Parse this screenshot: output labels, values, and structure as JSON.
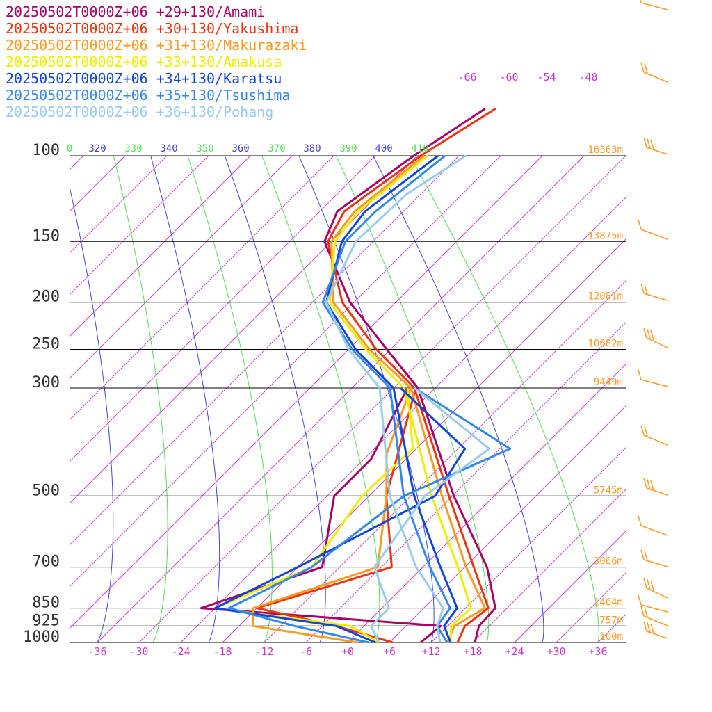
{
  "chart_data": {
    "type": "line",
    "chart_kind": "skew-T log-P",
    "x_axis": {
      "ticks": [
        -36,
        -30,
        -24,
        -18,
        -12,
        -6,
        0,
        6,
        12,
        18,
        24,
        30,
        36
      ],
      "tick_labels": [
        "-36",
        "-30",
        "-24",
        "-18",
        "-12",
        "-6",
        "+0",
        "+6",
        "+12",
        "+18",
        "+24",
        "+30",
        "+36"
      ]
    },
    "y_axis": {
      "scale": "log",
      "range": [
        1000,
        100
      ],
      "levels": [
        {
          "p": 100,
          "label": "100",
          "height": "16363m"
        },
        {
          "p": 150,
          "label": "150",
          "height": "13875m"
        },
        {
          "p": 200,
          "label": "200",
          "height": "12081m"
        },
        {
          "p": 250,
          "label": "250",
          "height": "10682m"
        },
        {
          "p": 300,
          "label": "300",
          "height": "9449m"
        },
        {
          "p": 500,
          "label": "500",
          "height": "5745m"
        },
        {
          "p": 700,
          "label": "700",
          "height": "3066m"
        },
        {
          "p": 850,
          "label": "850",
          "height": "1464m"
        },
        {
          "p": 925,
          "label": "925",
          "height": "757m"
        },
        {
          "p": 1000,
          "label": "1000",
          "height": "100m"
        }
      ]
    },
    "isotherm_labels": [
      "-66",
      "-60",
      "-54",
      "-48"
    ],
    "theta_e_labels": [
      {
        "text": "0",
        "color": "#55dd55"
      },
      {
        "text": "320",
        "color": "#4444dd"
      },
      {
        "text": "330",
        "color": "#55dd55"
      },
      {
        "text": "340",
        "color": "#4444dd"
      },
      {
        "text": "350",
        "color": "#55dd55"
      },
      {
        "text": "360",
        "color": "#4444dd"
      },
      {
        "text": "370",
        "color": "#55dd55"
      },
      {
        "text": "380",
        "color": "#4444dd"
      },
      {
        "text": "390",
        "color": "#55dd55"
      },
      {
        "text": "400",
        "color": "#4444dd"
      },
      {
        "text": "410",
        "color": "#55dd55"
      }
    ],
    "series": [
      {
        "name": "20250502T0000Z+06 +29+130/Amami",
        "color": "#aa0066",
        "temperature": [
          [
            1000,
            18.3
          ],
          [
            925,
            16.5
          ],
          [
            850,
            16.3
          ],
          [
            700,
            9.2
          ],
          [
            500,
            -5.8
          ],
          [
            300,
            -26.5
          ],
          [
            250,
            -36.5
          ],
          [
            200,
            -48.6
          ],
          [
            150,
            -61
          ],
          [
            130,
            -63.5
          ],
          [
            100,
            -60.5
          ],
          [
            80,
            -57
          ]
        ],
        "dewpoint": [
          [
            1000,
            10.5
          ],
          [
            925,
            11.0
          ],
          [
            850,
            -26.0
          ],
          [
            700,
            -14.5
          ],
          [
            500,
            -23.0
          ],
          [
            420,
            -23.0
          ],
          [
            300,
            -28.0
          ]
        ]
      },
      {
        "name": "20250502T0000Z+06 +30+130/Yakushima",
        "color": "#ee3311",
        "temperature": [
          [
            1000,
            15.8
          ],
          [
            925,
            14.5
          ],
          [
            850,
            15.3
          ],
          [
            700,
            7.3
          ],
          [
            500,
            -6.5
          ],
          [
            300,
            -27.0
          ],
          [
            250,
            -38.0
          ],
          [
            200,
            -49.7
          ],
          [
            150,
            -60.5
          ],
          [
            130,
            -62.5
          ],
          [
            100,
            -59.5
          ],
          [
            80,
            -55.5
          ]
        ],
        "dewpoint": [
          [
            1000,
            6.5
          ],
          [
            925,
            -4.0
          ],
          [
            850,
            -18.0
          ],
          [
            700,
            -4.5
          ],
          [
            500,
            -15.5
          ],
          [
            300,
            -26.8
          ]
        ]
      },
      {
        "name": "20250502T0000Z+06 +31+130/Makurazaki",
        "color": "#ff9922",
        "temperature": [
          [
            1000,
            14.3
          ],
          [
            925,
            13.0
          ],
          [
            850,
            14.8
          ],
          [
            700,
            6.2
          ],
          [
            500,
            -7.5
          ],
          [
            300,
            -27.5
          ],
          [
            250,
            -39.0
          ],
          [
            200,
            -51.0
          ],
          [
            150,
            -60.0
          ],
          [
            130,
            -61.0
          ],
          [
            100,
            -59.0
          ]
        ],
        "dewpoint": [
          [
            1000,
            1.5
          ],
          [
            925,
            -16.0
          ],
          [
            850,
            -18.5
          ],
          [
            700,
            -6.5
          ],
          [
            500,
            -15.5
          ],
          [
            410,
            -21.5
          ],
          [
            300,
            -27.5
          ]
        ]
      },
      {
        "name": "20250502T0000Z+06 +33+130/Amakusa",
        "color": "#eeee00",
        "temperature": [
          [
            1000,
            14.8
          ],
          [
            925,
            12.5
          ],
          [
            850,
            12.8
          ],
          [
            700,
            5.0
          ],
          [
            500,
            -9.0
          ],
          [
            300,
            -28.5
          ],
          [
            250,
            -39.5
          ],
          [
            200,
            -51.5
          ],
          [
            150,
            -59.5
          ],
          [
            130,
            -60.5
          ],
          [
            100,
            -58.5
          ]
        ],
        "dewpoint": [
          [
            1000,
            4.5
          ],
          [
            925,
            -2.0
          ],
          [
            850,
            -24.0
          ],
          [
            700,
            -16.0
          ],
          [
            500,
            -19.0
          ],
          [
            400,
            -18.5
          ],
          [
            300,
            -28.0
          ]
        ]
      },
      {
        "name": "20250502T0000Z+06 +34+130/Karatsu",
        "color": "#1144dd",
        "temperature": [
          [
            1000,
            14.8
          ],
          [
            925,
            11.5
          ],
          [
            850,
            10.8
          ],
          [
            700,
            2.5
          ],
          [
            500,
            -11.5
          ],
          [
            300,
            -30.0
          ],
          [
            250,
            -41.0
          ],
          [
            200,
            -52.0
          ],
          [
            150,
            -58.5
          ],
          [
            130,
            -59.5
          ],
          [
            100,
            -57.0
          ]
        ],
        "dewpoint": [
          [
            1000,
            4.0
          ],
          [
            925,
            -4.0
          ],
          [
            850,
            -24.0
          ],
          [
            700,
            -18.0
          ],
          [
            500,
            -8.5
          ],
          [
            400,
            -11.0
          ],
          [
            300,
            -29.0
          ]
        ]
      },
      {
        "name": "20250502T0000Z+06 +35+130/Tsushima",
        "color": "#3388ee",
        "temperature": [
          [
            1000,
            14.3
          ],
          [
            925,
            10.5
          ],
          [
            850,
            9.8
          ],
          [
            700,
            1.0
          ],
          [
            500,
            -13.0
          ],
          [
            300,
            -30.5
          ],
          [
            250,
            -41.5
          ],
          [
            200,
            -52.5
          ],
          [
            150,
            -58.0
          ],
          [
            130,
            -58.0
          ],
          [
            100,
            -56.0
          ]
        ],
        "dewpoint": [
          [
            1000,
            3.0
          ],
          [
            925,
            -10.0
          ],
          [
            850,
            -22.0
          ],
          [
            700,
            -16.0
          ],
          [
            500,
            -13.0
          ],
          [
            400,
            -4.5
          ],
          [
            300,
            -27.0
          ]
        ]
      },
      {
        "name": "20250502T0000Z+06 +36+130/Pohang",
        "color": "#99ccee",
        "temperature": [
          [
            1000,
            13.3
          ],
          [
            925,
            10.5
          ],
          [
            850,
            8.8
          ],
          [
            700,
            -1.0
          ],
          [
            500,
            -15.0
          ],
          [
            300,
            -32.0
          ],
          [
            250,
            -42.0
          ],
          [
            200,
            -52.0
          ],
          [
            150,
            -56.5
          ],
          [
            120,
            -56.0
          ],
          [
            100,
            -53.0
          ]
        ],
        "dewpoint": [
          [
            1000,
            4.5
          ],
          [
            925,
            1.0
          ],
          [
            850,
            1.0
          ],
          [
            700,
            -7.0
          ],
          [
            500,
            -10.0
          ],
          [
            400,
            -7.5
          ],
          [
            300,
            -27.0
          ]
        ]
      }
    ],
    "wind_barb_color": "#ff9922"
  }
}
